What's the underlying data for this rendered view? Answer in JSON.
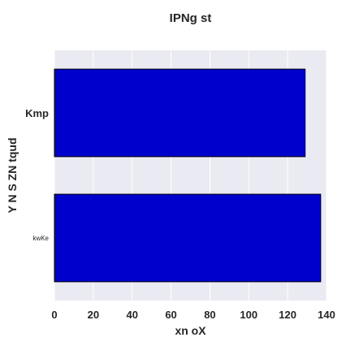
{
  "chart_data": {
    "type": "bar",
    "orientation": "horizontal",
    "title": "IPNg st",
    "xlabel": "xn  oX",
    "ylabel": "Y N S ZN tqud",
    "categories": [
      "Kmp",
      "kwKe"
    ],
    "values": [
      129,
      137
    ],
    "xlim": [
      0,
      140
    ],
    "xticks": [
      0,
      20,
      40,
      60,
      80,
      100,
      120,
      140
    ],
    "grid": true,
    "bar_color": "#0000cd",
    "bar_edge_color": "#000000",
    "background_color": "#eaeaf2"
  }
}
